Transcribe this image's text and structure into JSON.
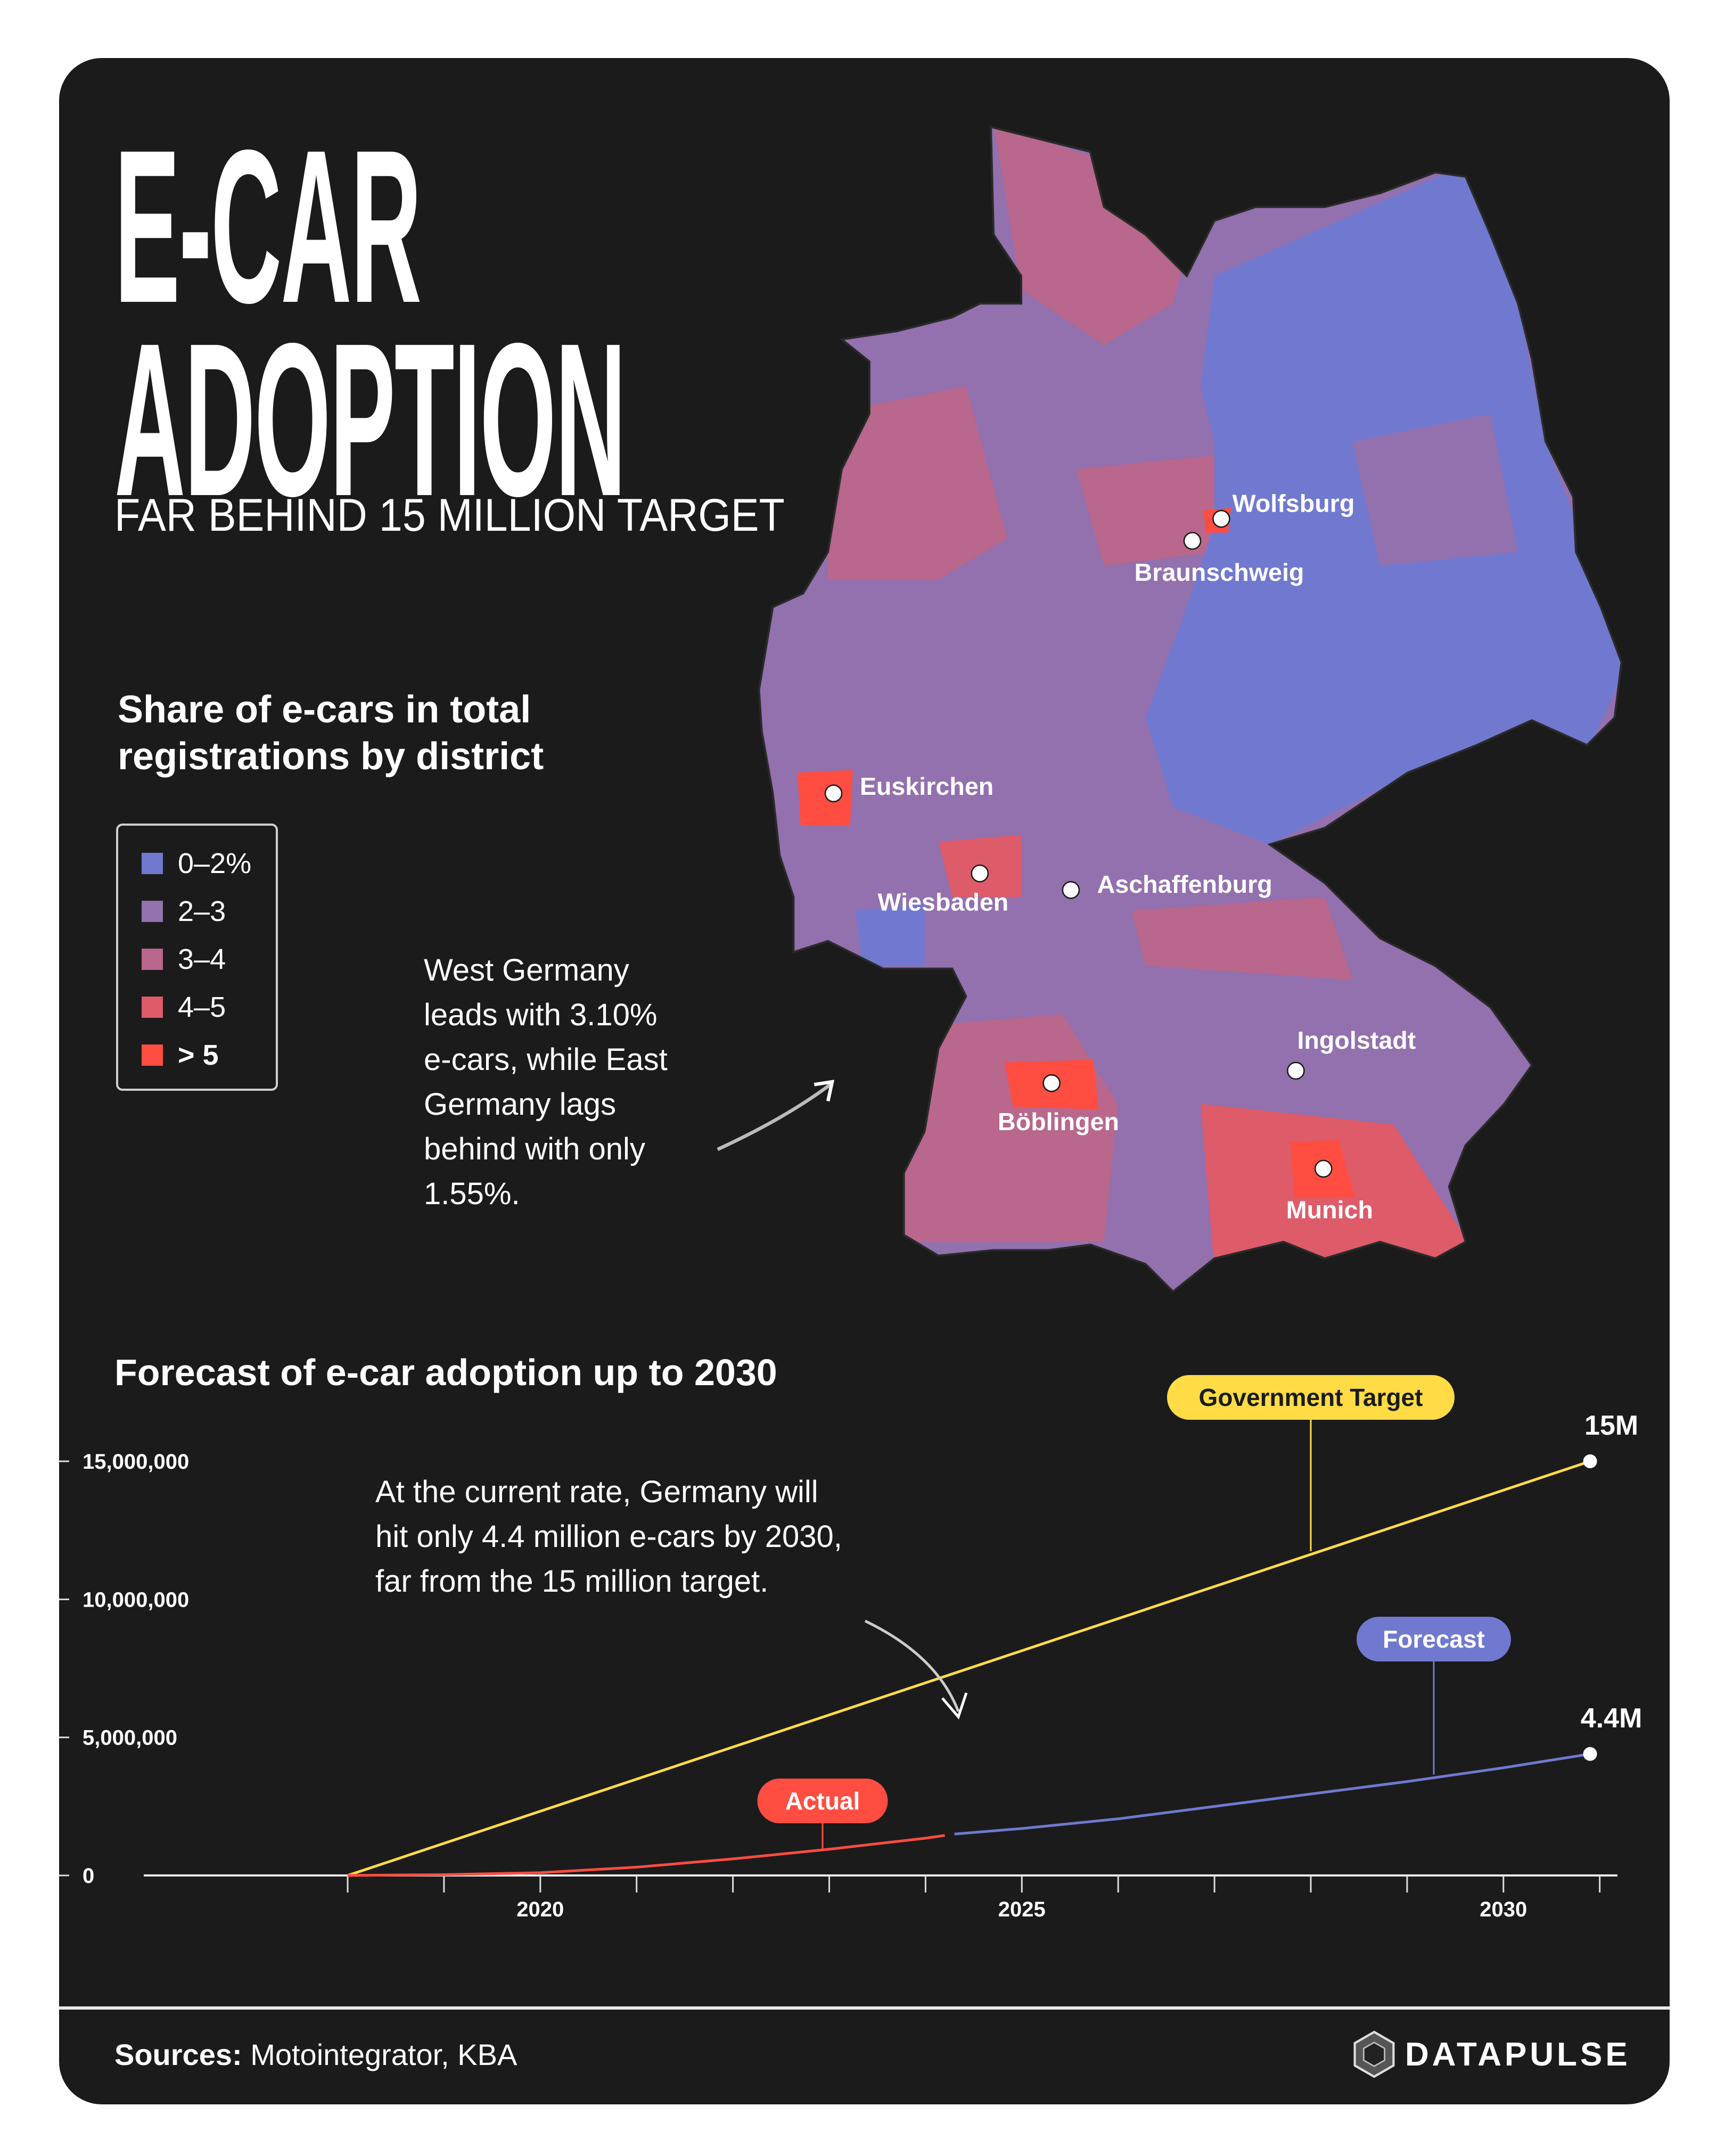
{
  "header": {
    "title_line1": "E-CAR",
    "title_line2": "ADOPTION",
    "subtitle": "FAR BEHIND 15 MILLION TARGET"
  },
  "map": {
    "title_line1": "Share of e-cars in total",
    "title_line2": "registrations by district",
    "legend": [
      {
        "label": "0–2%",
        "color": "#7079cf"
      },
      {
        "label": "2–3",
        "color": "#9370ae"
      },
      {
        "label": "3–4",
        "color": "#b9678c"
      },
      {
        "label": "4–5",
        "color": "#de5b6a"
      },
      {
        "label": "> 5",
        "color": "#ff4d42"
      }
    ],
    "note_lines": [
      "West Germany",
      "leads with 3.10%",
      "e-cars, while East",
      "Germany lags",
      "behind with only",
      "1.55%."
    ],
    "cities": [
      "Wolfsburg",
      "Braunschweig",
      "Euskirchen",
      "Wiesbaden",
      "Aschaffenburg",
      "Ingolstadt",
      "Böblingen",
      "Munich"
    ]
  },
  "chart_data": {
    "type": "line",
    "title": "Forecast of e-car adoption up to 2030",
    "xlim": [
      2018,
      2031
    ],
    "ylim": [
      0,
      15000000
    ],
    "x_ticks": [
      "2020",
      "2025",
      "2030"
    ],
    "y_ticks": [
      "0",
      "5,000,000",
      "10,000,000",
      "15,000,000"
    ],
    "series": [
      {
        "name": "Government Target",
        "color": "#ffdc45",
        "x": [
          2018,
          2030.9
        ],
        "y": [
          0,
          15000000
        ],
        "end_label": "15M"
      },
      {
        "name": "Actual",
        "color": "#ff4d42",
        "x": [
          2018,
          2019,
          2020,
          2021,
          2022,
          2023,
          2024,
          2024.2
        ],
        "y": [
          0,
          30000,
          100000,
          300000,
          600000,
          950000,
          1350000,
          1450000
        ]
      },
      {
        "name": "Forecast",
        "color": "#7079cf",
        "x": [
          2024.3,
          2025,
          2026,
          2027,
          2028,
          2029,
          2030,
          2030.9
        ],
        "y": [
          1500000,
          1700000,
          2050000,
          2500000,
          2950000,
          3400000,
          3900000,
          4400000
        ],
        "end_label": "4.4M"
      }
    ],
    "annotation_lines": [
      "At the current rate, Germany will",
      "hit only 4.4 million e-cars by 2030,",
      "far from the 15 million target."
    ]
  },
  "footer": {
    "sources_label": "Sources:",
    "sources_text": " Motointegrator, KBA",
    "brand": "DATAPULSE"
  }
}
